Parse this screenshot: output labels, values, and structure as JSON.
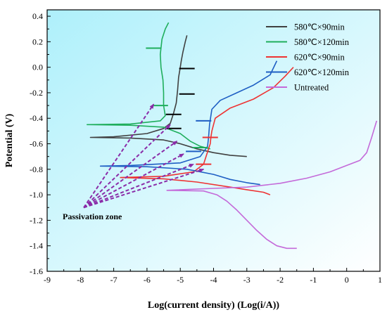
{
  "chart_data": {
    "type": "line",
    "xlabel": "Log(current density) (Log(i/A))",
    "ylabel": "Potential (V)",
    "xlim": [
      -9,
      1
    ],
    "ylim": [
      -1.6,
      0.45
    ],
    "xticks": [
      -9,
      -8,
      -7,
      -6,
      -5,
      -4,
      -3,
      -2,
      -1,
      0,
      1
    ],
    "yticks": [
      -1.6,
      -1.4,
      -1.2,
      -1.0,
      -0.8,
      -0.6,
      -0.4,
      -0.2,
      0.0,
      0.2,
      0.4
    ],
    "legend_position": "top-right",
    "background_gradient": [
      "#aef0fb",
      "#ffffff"
    ],
    "annotation": {
      "text": "Passivation zone",
      "arrow_color": "#8a2ca8",
      "arrow_targets": [
        {
          "x": -5.8,
          "y": -0.29
        },
        {
          "x": -5.3,
          "y": -0.45
        },
        {
          "x": -5.1,
          "y": -0.58
        },
        {
          "x": -4.9,
          "y": -0.68
        },
        {
          "x": -4.6,
          "y": -0.76
        },
        {
          "x": -4.3,
          "y": -0.8
        }
      ],
      "arrow_origin": {
        "x": -7.9,
        "y": -1.1
      }
    },
    "series": [
      {
        "name": "580℃×90min",
        "color": "#404040",
        "points": [
          [
            -4.8,
            0.25
          ],
          [
            -4.85,
            0.2
          ],
          [
            -4.92,
            0.12
          ],
          [
            -4.97,
            0.05
          ],
          [
            -5.0,
            0.0
          ],
          [
            -5.05,
            -0.08
          ],
          [
            -5.08,
            -0.18
          ],
          [
            -5.12,
            -0.28
          ],
          [
            -5.2,
            -0.36
          ],
          [
            -5.3,
            -0.44
          ],
          [
            -5.5,
            -0.48
          ],
          [
            -6.0,
            -0.52
          ],
          [
            -7.0,
            -0.545
          ],
          [
            -7.7,
            -0.55
          ],
          [
            -6.5,
            -0.555
          ],
          [
            -5.5,
            -0.57
          ],
          [
            -5.0,
            -0.6
          ],
          [
            -4.5,
            -0.64
          ],
          [
            -4.0,
            -0.67
          ],
          [
            -3.5,
            -0.69
          ],
          [
            -3.0,
            -0.7
          ]
        ],
        "marks": [
          [
            -4.8,
            -0.01
          ],
          [
            -4.8,
            -0.21
          ],
          [
            -5.2,
            -0.37
          ],
          [
            -5.2,
            -0.48
          ]
        ]
      },
      {
        "name": "580℃×120min",
        "color": "#1fae5c",
        "points": [
          [
            -5.35,
            0.35
          ],
          [
            -5.45,
            0.3
          ],
          [
            -5.55,
            0.22
          ],
          [
            -5.6,
            0.1
          ],
          [
            -5.58,
            0.0
          ],
          [
            -5.52,
            -0.1
          ],
          [
            -5.5,
            -0.2
          ],
          [
            -5.5,
            -0.3
          ],
          [
            -5.45,
            -0.38
          ],
          [
            -5.6,
            -0.42
          ],
          [
            -6.5,
            -0.445
          ],
          [
            -7.8,
            -0.45
          ],
          [
            -6.5,
            -0.455
          ],
          [
            -5.5,
            -0.47
          ],
          [
            -5.0,
            -0.52
          ],
          [
            -4.7,
            -0.58
          ],
          [
            -4.4,
            -0.62
          ],
          [
            -4.1,
            -0.64
          ]
        ],
        "marks": [
          [
            -5.8,
            0.15
          ],
          [
            -5.6,
            -0.3
          ],
          [
            -4.4,
            -0.63
          ]
        ]
      },
      {
        "name": "620℃×90min",
        "color": "#ee3333",
        "points": [
          [
            -1.6,
            0.0
          ],
          [
            -1.85,
            -0.07
          ],
          [
            -2.2,
            -0.16
          ],
          [
            -2.8,
            -0.25
          ],
          [
            -3.5,
            -0.32
          ],
          [
            -3.95,
            -0.4
          ],
          [
            -4.05,
            -0.5
          ],
          [
            -4.08,
            -0.55
          ],
          [
            -4.1,
            -0.6
          ],
          [
            -4.2,
            -0.68
          ],
          [
            -4.3,
            -0.76
          ],
          [
            -4.6,
            -0.82
          ],
          [
            -5.5,
            -0.855
          ],
          [
            -6.8,
            -0.865
          ],
          [
            -5.5,
            -0.875
          ],
          [
            -4.5,
            -0.9
          ],
          [
            -3.5,
            -0.94
          ],
          [
            -3.0,
            -0.96
          ],
          [
            -2.5,
            -0.98
          ],
          [
            -2.3,
            -1.0
          ]
        ],
        "marks": [
          [
            -4.1,
            -0.55
          ],
          [
            -4.3,
            -0.76
          ]
        ]
      },
      {
        "name": "620℃×120min",
        "color": "#1f5fc4",
        "points": [
          [
            -2.1,
            0.05
          ],
          [
            -2.3,
            -0.06
          ],
          [
            -2.8,
            -0.14
          ],
          [
            -3.3,
            -0.2
          ],
          [
            -3.8,
            -0.26
          ],
          [
            -4.05,
            -0.33
          ],
          [
            -4.12,
            -0.45
          ],
          [
            -4.15,
            -0.55
          ],
          [
            -4.18,
            -0.62
          ],
          [
            -4.4,
            -0.7
          ],
          [
            -5.0,
            -0.75
          ],
          [
            -6.5,
            -0.77
          ],
          [
            -7.4,
            -0.775
          ],
          [
            -6.0,
            -0.78
          ],
          [
            -4.8,
            -0.8
          ],
          [
            -4.0,
            -0.84
          ],
          [
            -3.5,
            -0.88
          ],
          [
            -3.0,
            -0.905
          ],
          [
            -2.6,
            -0.92
          ]
        ],
        "marks": [
          [
            -4.3,
            -0.42
          ],
          [
            -4.6,
            -0.66
          ]
        ]
      },
      {
        "name": "Untreated",
        "color": "#c46ad9",
        "points": [
          [
            0.9,
            -0.42
          ],
          [
            0.75,
            -0.55
          ],
          [
            0.6,
            -0.67
          ],
          [
            0.4,
            -0.73
          ],
          [
            0.0,
            -0.77
          ],
          [
            -0.5,
            -0.82
          ],
          [
            -1.2,
            -0.87
          ],
          [
            -2.0,
            -0.91
          ],
          [
            -3.0,
            -0.94
          ],
          [
            -4.0,
            -0.95
          ],
          [
            -5.4,
            -0.965
          ],
          [
            -4.3,
            -0.97
          ],
          [
            -3.9,
            -1.0
          ],
          [
            -3.6,
            -1.05
          ],
          [
            -3.3,
            -1.12
          ],
          [
            -3.0,
            -1.2
          ],
          [
            -2.7,
            -1.28
          ],
          [
            -2.4,
            -1.35
          ],
          [
            -2.1,
            -1.4
          ],
          [
            -1.8,
            -1.42
          ],
          [
            -1.5,
            -1.42
          ]
        ],
        "marks": []
      }
    ]
  }
}
